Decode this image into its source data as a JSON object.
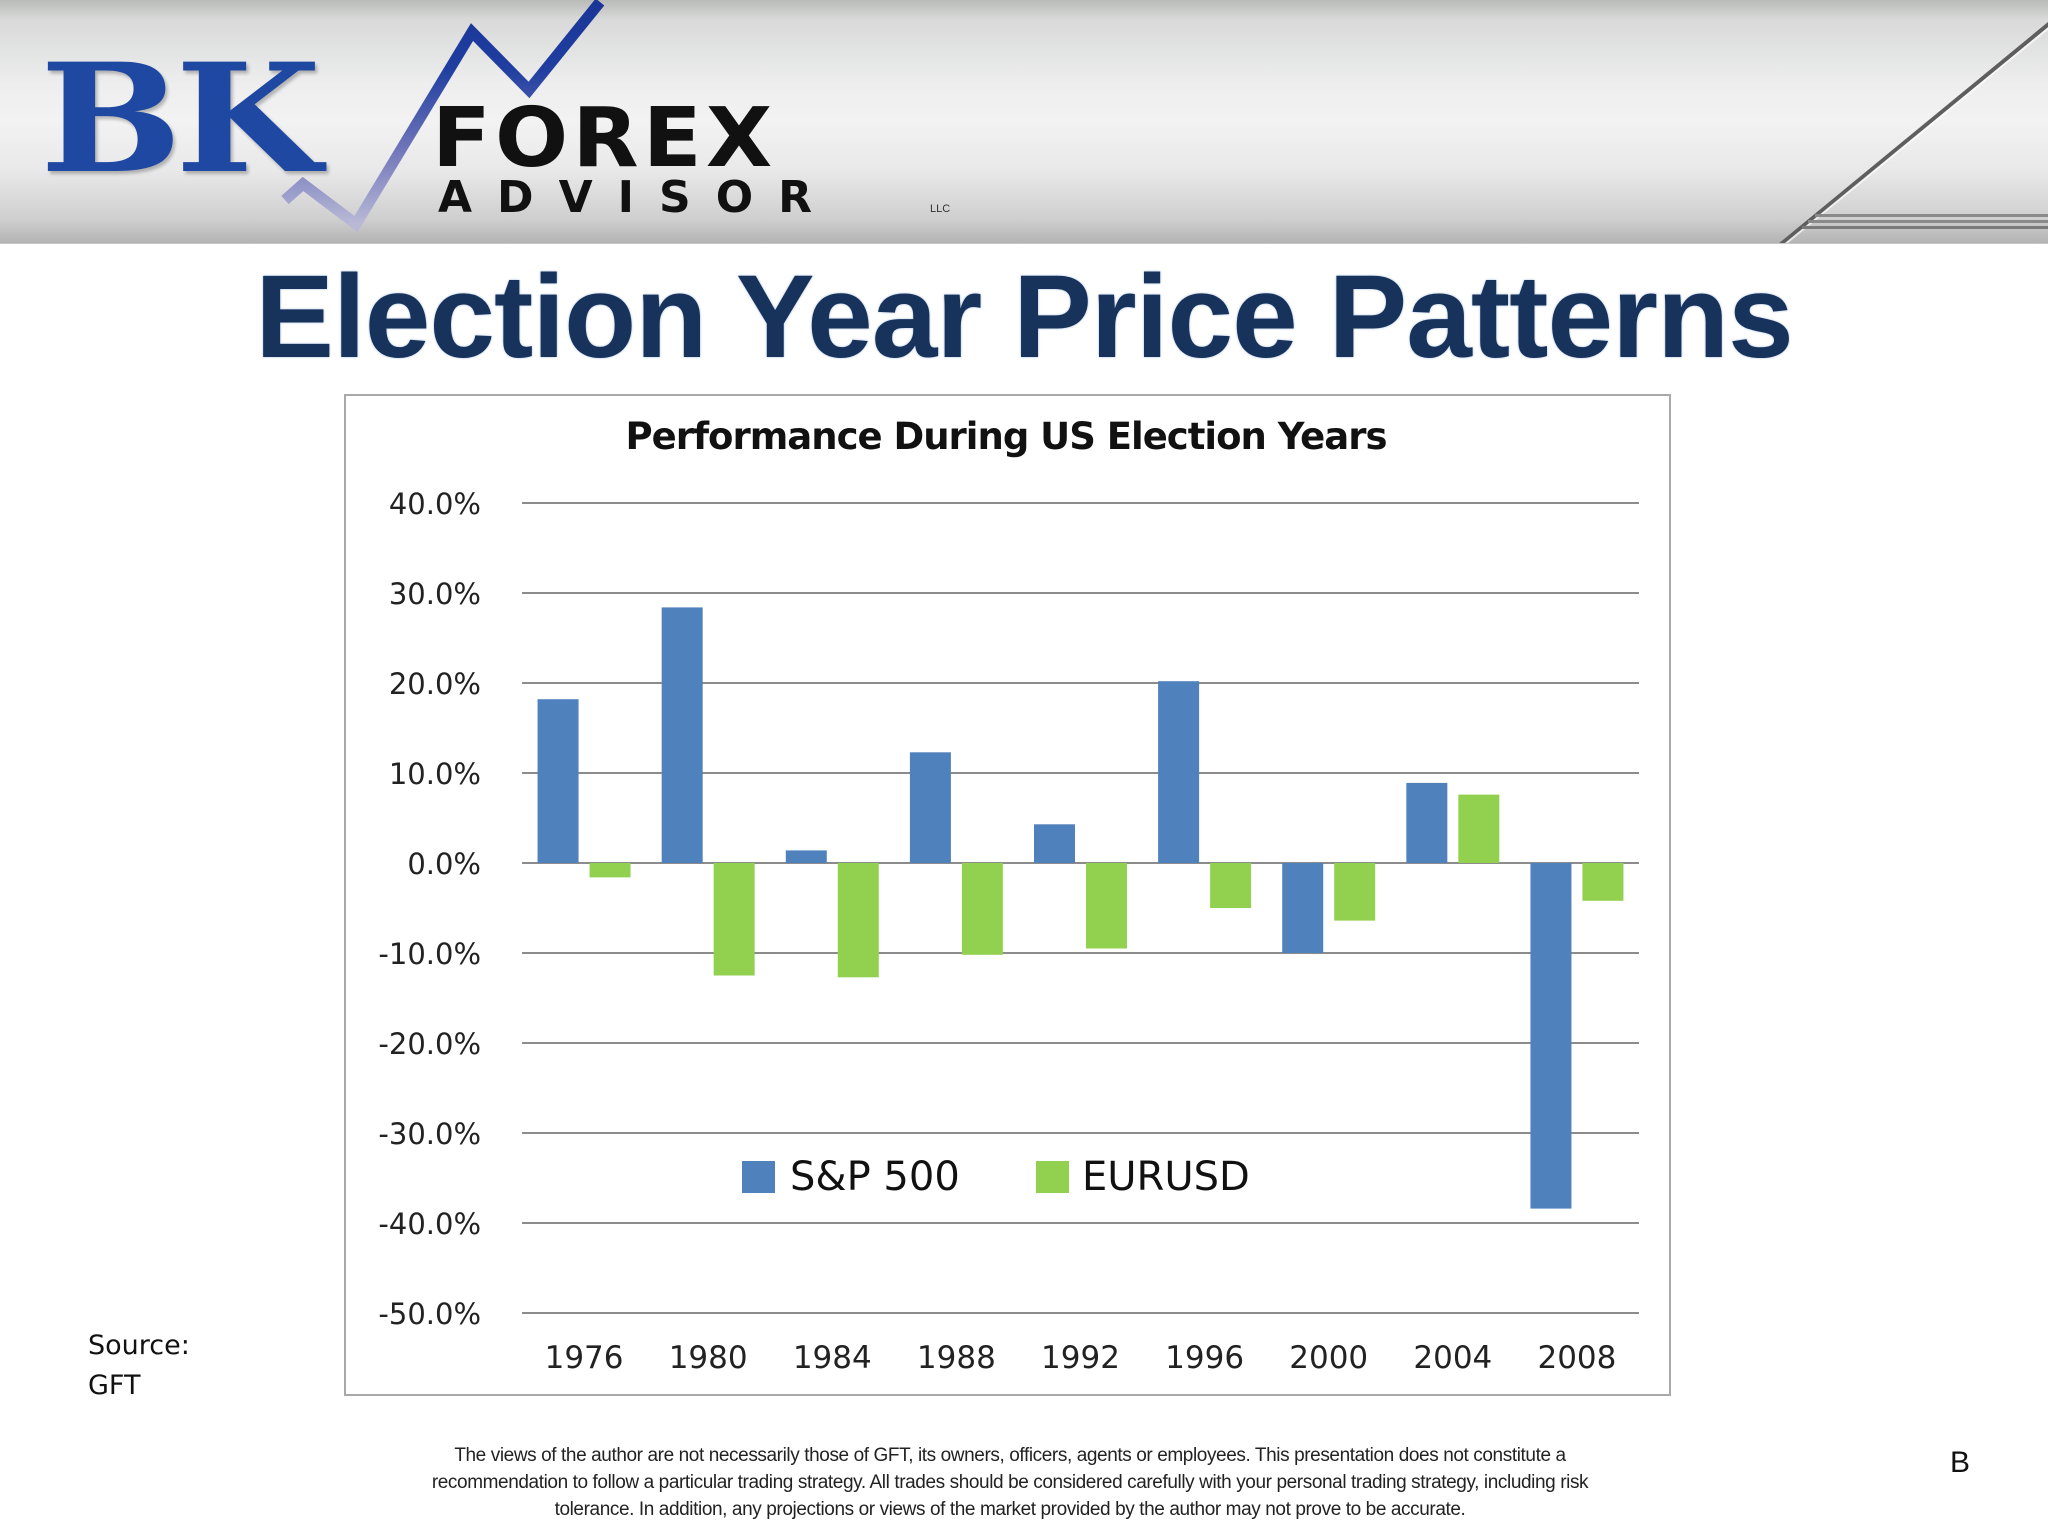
{
  "header": {
    "logo_primary": "BK",
    "logo_secondary": "FOREX",
    "logo_tertiary": "ADVISOR",
    "logo_suffix": "LLC"
  },
  "page": {
    "title": "Election Year Price Patterns",
    "source_label": "Source:",
    "source_value": "GFT",
    "slide_mark": "B",
    "disclaimer_lines": [
      "The views of the author are not necessarily those of GFT, its owners, officers, agents or employees. This presentation does not constitute a",
      "recommendation to follow a particular trading strategy. All trades should be considered carefully with your personal trading strategy, including risk",
      "tolerance. In addition, any projections or views of the market provided by the author may not prove to be accurate."
    ]
  },
  "colors": {
    "title_navy": "#17325b",
    "logo_blue": "#1f48a3",
    "sp500": "#4f81bd",
    "eurusd": "#92d050",
    "gridline": "#8c8c8c"
  },
  "chart_data": {
    "type": "bar",
    "title": "Performance During US Election Years",
    "xlabel": "",
    "ylabel": "",
    "categories": [
      "1976",
      "1980",
      "1984",
      "1988",
      "1992",
      "1996",
      "2000",
      "2004",
      "2008"
    ],
    "series": [
      {
        "name": "S&P 500",
        "color": "#4f81bd",
        "values": [
          18.2,
          28.4,
          1.4,
          12.3,
          4.3,
          20.2,
          -10.0,
          8.9,
          -38.4
        ]
      },
      {
        "name": "EURUSD",
        "color": "#92d050",
        "values": [
          -1.6,
          -12.5,
          -12.7,
          -10.2,
          -9.5,
          -5.0,
          -6.4,
          7.6,
          -4.2
        ]
      }
    ],
    "ylim": [
      -50,
      40
    ],
    "yticks": [
      40,
      30,
      20,
      10,
      0,
      -10,
      -20,
      -30,
      -40,
      -50
    ],
    "ytick_labels": [
      "40.0%",
      "30.0%",
      "20.0%",
      "10.0%",
      "0.0%",
      "-10.0%",
      "-20.0%",
      "-30.0%",
      "-40.0%",
      "-50.0%"
    ],
    "grid": true,
    "legend_position": "inside-lower-center",
    "units": "percent"
  }
}
